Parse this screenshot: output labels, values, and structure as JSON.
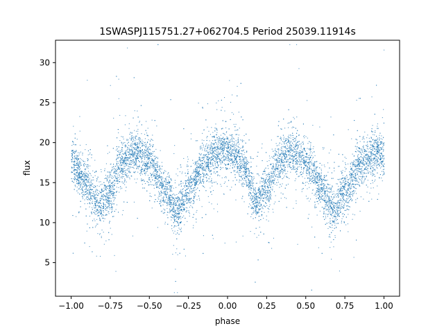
{
  "chart_data": {
    "type": "scatter",
    "title": "1SWASPJ115751.27+062704.5 Period 25039.11914s",
    "xlabel": "phase",
    "ylabel": "flux",
    "xlim": [
      -1.1,
      1.1
    ],
    "ylim": [
      0.8,
      32.8
    ],
    "xticks": [
      -1.0,
      -0.75,
      -0.5,
      -0.25,
      0.0,
      0.25,
      0.5,
      0.75,
      1.0
    ],
    "xtick_labels": [
      "−1.00",
      "−0.75",
      "−0.50",
      "−0.25",
      "0.00",
      "0.25",
      "0.50",
      "0.75",
      "1.00"
    ],
    "yticks": [
      5,
      10,
      15,
      20,
      25,
      30
    ],
    "ytick_labels": [
      "5",
      "10",
      "15",
      "20",
      "25",
      "30"
    ],
    "grid": false,
    "marker_color": "#1f77b4",
    "series": [
      {
        "description_points": {
          "x": [
            -1.0,
            -0.9,
            -0.82,
            -0.75,
            -0.68,
            -0.6,
            -0.5,
            -0.4,
            -0.32,
            -0.25,
            -0.15,
            -0.05,
            0.05,
            0.1,
            0.18,
            0.25,
            0.32,
            0.4,
            0.5,
            0.6,
            0.68,
            0.75,
            0.85,
            0.95,
            1.0
          ],
          "y": [
            17.5,
            15.0,
            12.0,
            14.0,
            17.5,
            19.0,
            17.5,
            14.0,
            11.5,
            14.0,
            17.5,
            19.0,
            18.5,
            17.0,
            12.5,
            14.5,
            17.5,
            19.0,
            17.5,
            14.0,
            11.5,
            14.0,
            17.5,
            19.0,
            18.5
          ]
        }
      }
    ]
  }
}
